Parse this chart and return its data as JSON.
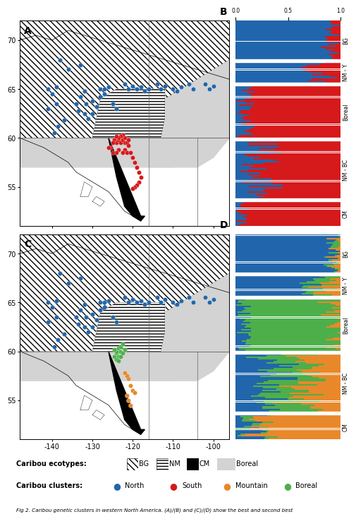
{
  "map_xlim": [
    -148,
    -96
  ],
  "map_ylim": [
    51,
    72
  ],
  "map_xticks": [
    -140,
    -130,
    -120,
    -110,
    -100
  ],
  "map_yticks": [
    55,
    60,
    65,
    70
  ],
  "north_cluster_color": "#2166ac",
  "south_cluster_color": "#d6191b",
  "mountain_cluster_color": "#e8882a",
  "boreal_cluster_color": "#4daf4a",
  "bar_blue": "#2166ac",
  "bar_red": "#d6191b",
  "bar_green": "#4daf4a",
  "bar_orange": "#e8882a",
  "sections": [
    "BG",
    "NM - Y",
    "Boreal",
    "NM - BC",
    "CM"
  ],
  "section_sizes": {
    "BG": 28,
    "NM - Y": 15,
    "Boreal": 38,
    "NM - BC": 42,
    "CM": 18
  },
  "land_color": "#d3d3d3",
  "ocean_color": "#ffffff",
  "boreal_fill": "#d3d3d3",
  "bg_hatch_color": "#000000",
  "nm_hatch_color": "#000000"
}
